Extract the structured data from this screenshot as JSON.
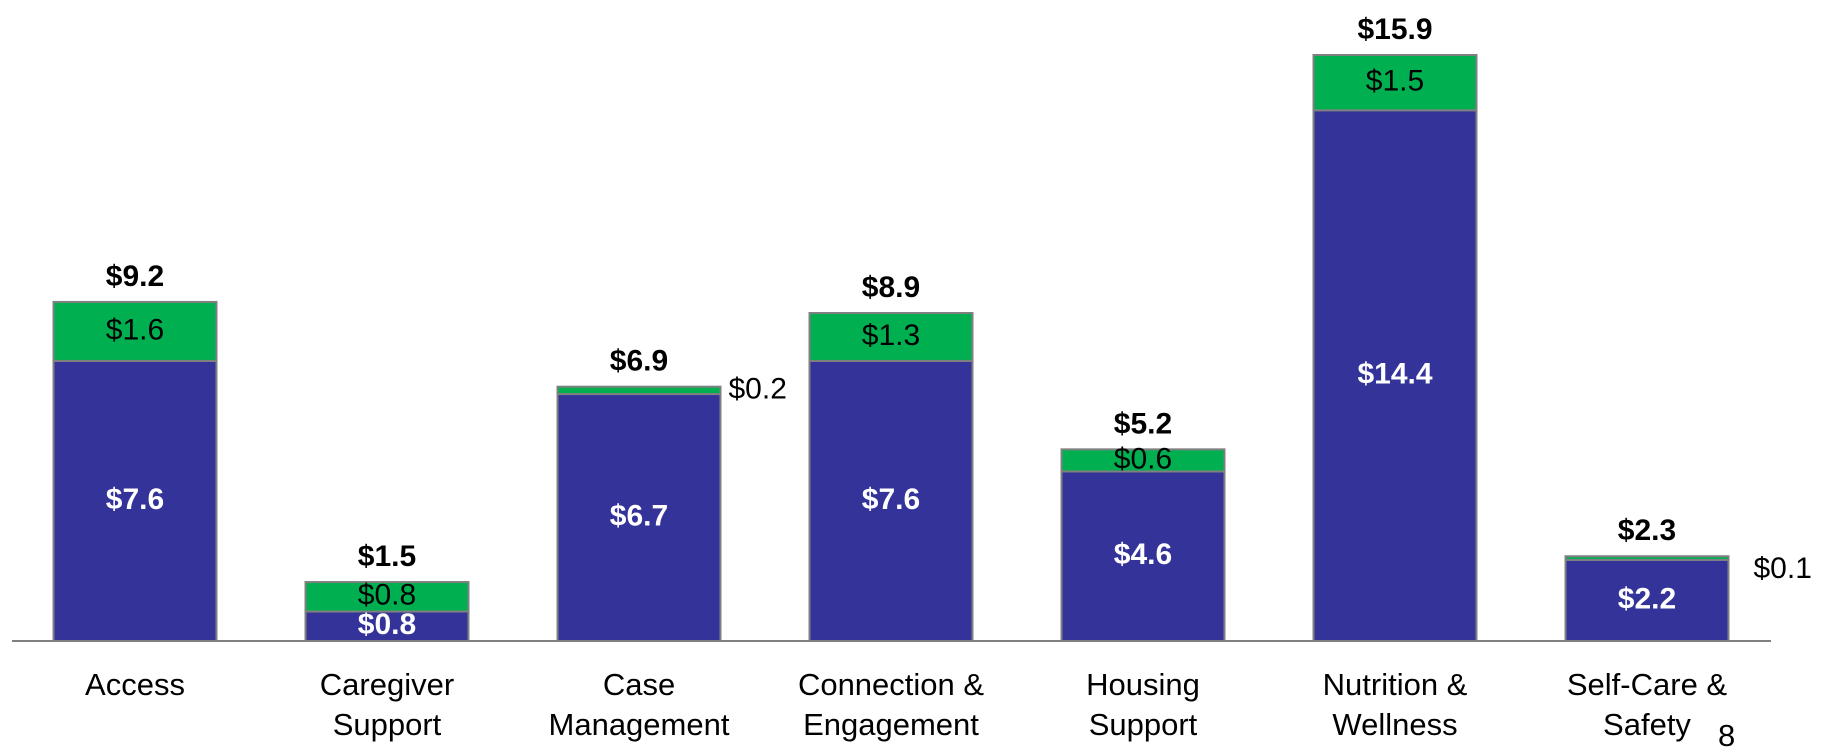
{
  "chart_data": {
    "type": "stacked_bar",
    "categories": [
      "Access",
      "Caregiver Support",
      "Case Management",
      "Connection & Engagement",
      "Housing Support",
      "Nutrition & Wellness",
      "Self-Care & Safety"
    ],
    "series": [
      {
        "color": "#333399",
        "values": [
          7.6,
          0.8,
          6.7,
          7.6,
          4.6,
          14.4,
          2.2
        ],
        "value_labels": [
          "$7.6",
          "$0.8",
          "$6.7",
          "$7.6",
          "$4.6",
          "$14.4",
          "$2.2"
        ]
      },
      {
        "color": "#00b050",
        "values": [
          1.6,
          0.8,
          0.2,
          1.3,
          0.6,
          1.5,
          0.1
        ],
        "value_labels": [
          "$1.6",
          "$0.8",
          "$0.2",
          "$1.3",
          "$0.6",
          "$1.5",
          "$0.1"
        ]
      }
    ],
    "totals": [
      9.2,
      1.5,
      6.9,
      8.9,
      5.2,
      15.9,
      2.3
    ],
    "totals_labels": [
      "$9.2",
      "$1.5",
      "$6.9",
      "$8.9",
      "$5.2",
      "$15.9",
      "$2.3"
    ]
  },
  "page_number": "8"
}
